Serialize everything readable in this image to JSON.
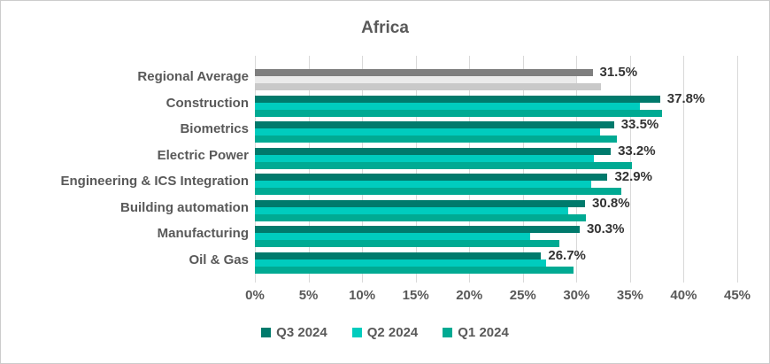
{
  "chart_data": {
    "type": "bar",
    "orientation": "horizontal",
    "title": "Africa",
    "categories": [
      "Regional Average",
      "Construction",
      "Biometrics",
      "Electric Power",
      "Engineering & ICS Integration",
      "Building automation",
      "Manufacturing",
      "Oil & Gas"
    ],
    "series": [
      {
        "name": "Q3 2024",
        "color": "#007A6C",
        "avg_color": "#7F7F7F",
        "values": [
          31.5,
          37.8,
          33.5,
          33.2,
          32.9,
          30.8,
          30.3,
          26.7
        ]
      },
      {
        "name": "Q2 2024",
        "color": "#00CCBE",
        "avg_color": "#EBEBEB",
        "values": [
          30.0,
          35.9,
          32.2,
          31.6,
          31.4,
          29.2,
          25.7,
          27.2
        ]
      },
      {
        "name": "Q1 2024",
        "color": "#00AA93",
        "avg_color": "#C9C9C9",
        "values": [
          32.3,
          38.0,
          33.8,
          35.2,
          34.2,
          30.9,
          28.4,
          29.7
        ]
      }
    ],
    "data_labels": [
      "31.5%",
      "37.8%",
      "33.5%",
      "33.2%",
      "32.9%",
      "30.8%",
      "30.3%",
      "26.7%"
    ],
    "data_label_series": "Q3 2024",
    "xlim": [
      0,
      45
    ],
    "x_ticks": [
      "0%",
      "5%",
      "10%",
      "15%",
      "20%",
      "25%",
      "30%",
      "35%",
      "40%",
      "45%"
    ],
    "grid": true,
    "legend_position": "bottom",
    "average_category_index": 0,
    "colors": {
      "grid": "#D9D9D9",
      "axis_text": "#595959",
      "data_label": "#333333",
      "border": "#CCCCCC"
    }
  }
}
